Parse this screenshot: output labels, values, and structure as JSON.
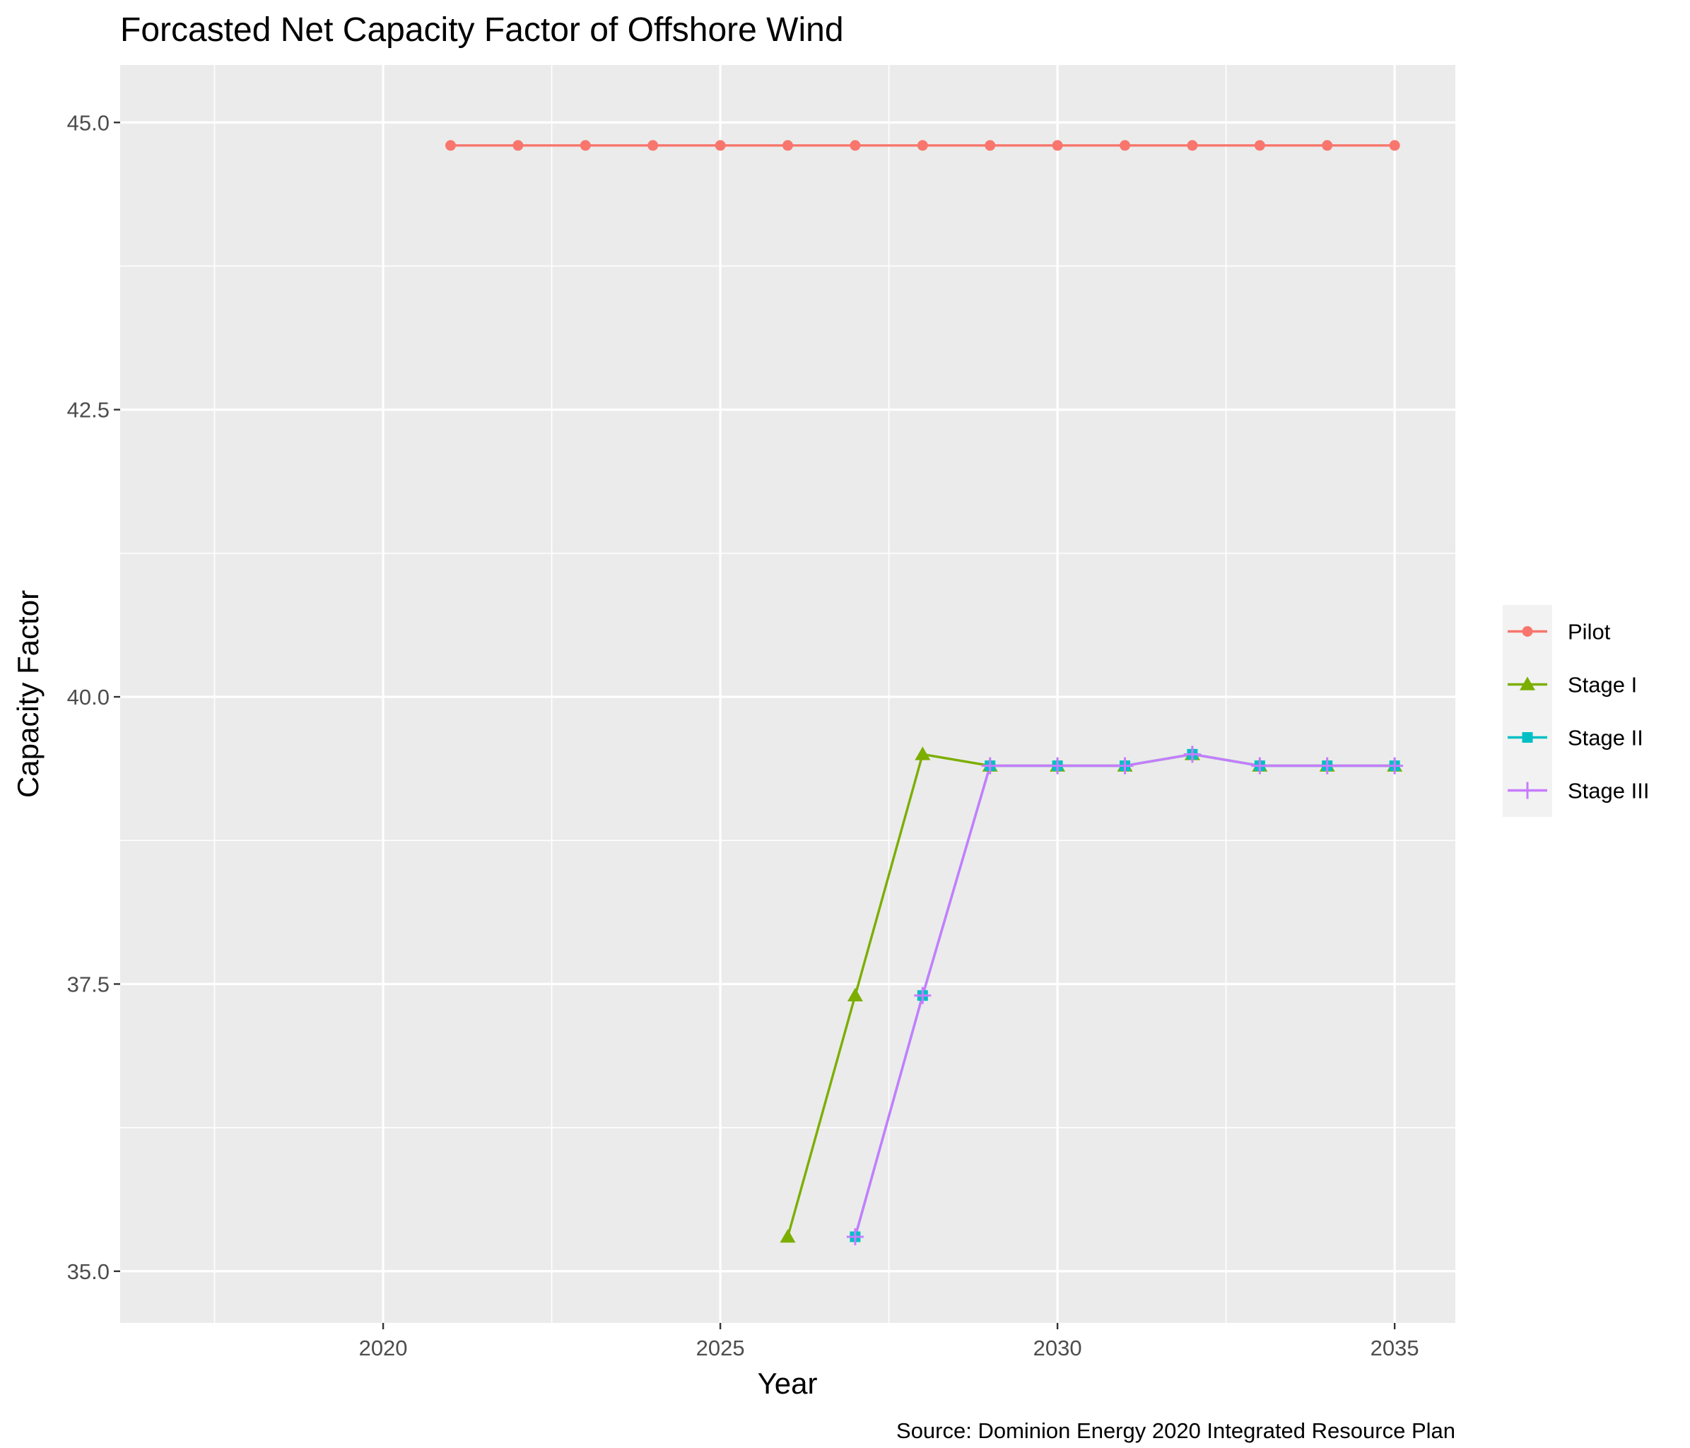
{
  "chart_data": {
    "type": "line",
    "title": "Forcasted Net Capacity Factor of Offshore Wind",
    "xlabel": "Year",
    "ylabel": "Capacity Factor",
    "caption": "Source: Dominion Energy 2020 Integrated Resource Plan",
    "xlim": [
      2016.1,
      2035.9
    ],
    "ylim": [
      34.55,
      45.5
    ],
    "x_ticks": [
      2020,
      2025,
      2030,
      2035
    ],
    "x_tick_labels": [
      "2020",
      "2025",
      "2030",
      "2035"
    ],
    "y_ticks": [
      35.0,
      37.5,
      40.0,
      42.5,
      45.0
    ],
    "y_tick_labels": [
      "35.0",
      "37.5",
      "40.0",
      "42.5",
      "45.0"
    ],
    "grid": true,
    "legend_position": "right",
    "series": [
      {
        "name": "Pilot",
        "color": "#F8766D",
        "marker": "circle",
        "x": [
          2021,
          2022,
          2023,
          2024,
          2025,
          2026,
          2027,
          2028,
          2029,
          2030,
          2031,
          2032,
          2033,
          2034,
          2035
        ],
        "y": [
          44.8,
          44.8,
          44.8,
          44.8,
          44.8,
          44.8,
          44.8,
          44.8,
          44.8,
          44.8,
          44.8,
          44.8,
          44.8,
          44.8,
          44.8
        ]
      },
      {
        "name": "Stage I",
        "color": "#7CAE00",
        "marker": "triangle",
        "x": [
          2026,
          2027,
          2028,
          2029,
          2030,
          2031,
          2032,
          2033,
          2034,
          2035
        ],
        "y": [
          35.3,
          37.4,
          39.5,
          39.4,
          39.4,
          39.4,
          39.5,
          39.4,
          39.4,
          39.4
        ]
      },
      {
        "name": "Stage II",
        "color": "#00BFC4",
        "marker": "square",
        "x": [
          2027,
          2028,
          2029,
          2030,
          2031,
          2032,
          2033,
          2034,
          2035
        ],
        "y": [
          35.3,
          37.4,
          39.4,
          39.4,
          39.4,
          39.5,
          39.4,
          39.4,
          39.4
        ]
      },
      {
        "name": "Stage III",
        "color": "#C77CFF",
        "marker": "plus",
        "x": [
          2027,
          2028,
          2029,
          2030,
          2031,
          2032,
          2033,
          2034,
          2035
        ],
        "y": [
          35.3,
          37.4,
          39.4,
          39.4,
          39.4,
          39.5,
          39.4,
          39.4,
          39.4
        ]
      }
    ]
  }
}
